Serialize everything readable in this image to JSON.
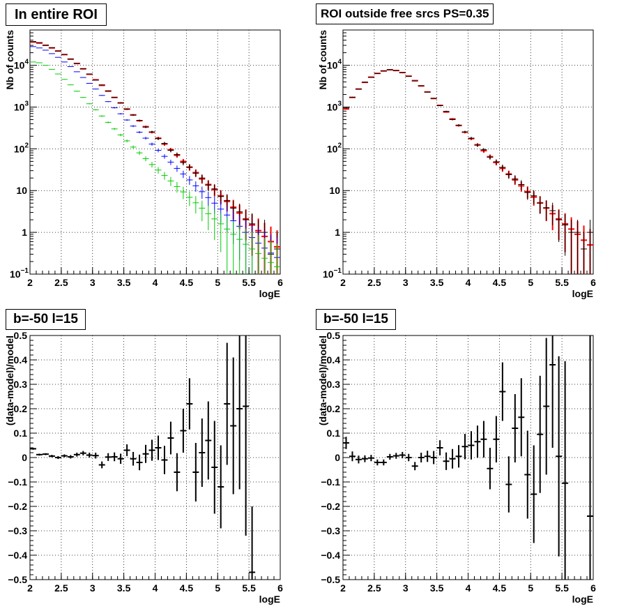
{
  "chart_data": [
    {
      "type": "scatter",
      "title": "In entire ROI",
      "xlabel": "logE",
      "ylabel": "Nb of counts",
      "xlim": [
        2,
        6
      ],
      "ylim": [
        0.1,
        70000
      ],
      "yscale": "log",
      "grid": true,
      "xticks": [
        "2",
        "2.5",
        "3",
        "3.5",
        "4",
        "4.5",
        "5",
        "5.5",
        "6"
      ],
      "yticks": [
        {
          "value": 0.1,
          "label": "10",
          "sup": "−1"
        },
        {
          "value": 1,
          "label": "1",
          "sup": ""
        },
        {
          "value": 10,
          "label": "10",
          "sup": ""
        },
        {
          "value": 100,
          "label": "10",
          "sup": "2"
        },
        {
          "value": 1000,
          "label": "10",
          "sup": "3"
        },
        {
          "value": 10000,
          "label": "10",
          "sup": "4"
        }
      ],
      "series": [
        {
          "color": "#ff0000",
          "x": [
            2.05,
            2.15,
            2.25,
            2.35,
            2.45,
            2.55,
            2.65,
            2.75,
            2.85,
            2.95,
            3.05,
            3.15,
            3.25,
            3.35,
            3.45,
            3.55,
            3.65,
            3.75,
            3.85,
            3.95,
            4.05,
            4.15,
            4.25,
            4.35,
            4.45,
            4.55,
            4.65,
            4.75,
            4.85,
            4.95,
            5.05,
            5.15,
            5.25,
            5.35,
            5.45,
            5.55,
            5.65,
            5.75,
            5.85,
            5.95
          ],
          "y": [
            36000,
            34000,
            30000,
            26000,
            22000,
            18000,
            14000,
            11000,
            8200,
            6100,
            4500,
            3300,
            2400,
            1700,
            1250,
            900,
            650,
            470,
            340,
            250,
            180,
            130,
            95,
            70,
            50,
            36,
            27,
            19,
            14,
            10.5,
            7.5,
            5.5,
            4,
            2.9,
            2.1,
            1.5,
            1.1,
            0.8,
            0.6,
            0.45
          ]
        },
        {
          "color": "#000000",
          "x": [
            2.05,
            2.15,
            2.25,
            2.35,
            2.45,
            2.55,
            2.65,
            2.75,
            2.85,
            2.95,
            3.05,
            3.15,
            3.25,
            3.35,
            3.45,
            3.55,
            3.65,
            3.75,
            3.85,
            3.95,
            4.05,
            4.15,
            4.25,
            4.35,
            4.45,
            4.55,
            4.65,
            4.75,
            4.85,
            4.95,
            5.05,
            5.15,
            5.25,
            5.35,
            5.45,
            5.55,
            5.65,
            5.75,
            5.85,
            5.95
          ],
          "y": [
            37000,
            35000,
            30500,
            26500,
            22000,
            18200,
            14200,
            11200,
            8300,
            6200,
            4400,
            3400,
            2450,
            1700,
            1270,
            880,
            640,
            480,
            330,
            255,
            175,
            135,
            92,
            73,
            47,
            37,
            26,
            20,
            13.5,
            11,
            7.2,
            5.8,
            3.8,
            3.1,
            2.0,
            1.6,
            1.0,
            1.0,
            0.3,
            0.4
          ]
        },
        {
          "color": "#0000ff",
          "x": [
            2.05,
            2.15,
            2.25,
            2.35,
            2.45,
            2.55,
            2.65,
            2.75,
            2.85,
            2.95,
            3.05,
            3.15,
            3.25,
            3.35,
            3.45,
            3.55,
            3.65,
            3.75,
            3.85,
            3.95,
            4.05,
            4.15,
            4.25,
            4.35,
            4.45,
            4.55,
            4.65,
            4.75,
            4.85,
            4.95,
            5.05,
            5.15,
            5.25,
            5.35,
            5.45,
            5.55,
            5.65,
            5.75,
            5.85,
            5.95
          ],
          "y": [
            28000,
            26000,
            23000,
            19000,
            15500,
            12000,
            9300,
            7000,
            5100,
            3700,
            2700,
            1900,
            1350,
            960,
            690,
            490,
            350,
            250,
            180,
            130,
            92,
            66,
            48,
            34,
            25,
            18,
            13,
            9.4,
            6.8,
            5,
            3.6,
            2.6,
            1.9,
            1.4,
            1.0,
            0.75,
            0.55,
            0.42,
            0.32,
            0.25
          ]
        },
        {
          "color": "#00cc00",
          "x": [
            2.05,
            2.15,
            2.25,
            2.35,
            2.45,
            2.55,
            2.65,
            2.75,
            2.85,
            2.95,
            3.05,
            3.15,
            3.25,
            3.35,
            3.45,
            3.55,
            3.65,
            3.75,
            3.85,
            3.95,
            4.05,
            4.15,
            4.25,
            4.35,
            4.45,
            4.55,
            4.65,
            4.75,
            4.85,
            4.95,
            5.05,
            5.15,
            5.25,
            5.35,
            5.45,
            5.55,
            5.65,
            5.75,
            5.85,
            5.95
          ],
          "y": [
            12000,
            11500,
            10000,
            8000,
            6200,
            4600,
            3400,
            2400,
            1700,
            1200,
            860,
            610,
            430,
            300,
            215,
            155,
            110,
            80,
            58,
            42,
            31,
            23,
            17,
            12.5,
            9.3,
            6.9,
            5.1,
            3.8,
            2.8,
            2.1,
            1.6,
            1.2,
            0.9,
            0.68,
            0.52,
            0.4,
            0.31,
            0.24,
            0.19,
            0.15
          ]
        }
      ]
    },
    {
      "type": "scatter",
      "title": "ROI outside free srcs PS=0.35",
      "xlabel": "logE",
      "ylabel": "Nb of counts",
      "xlim": [
        2,
        6
      ],
      "ylim": [
        0.1,
        70000
      ],
      "yscale": "log",
      "grid": true,
      "xticks": [
        "2",
        "2.5",
        "3",
        "3.5",
        "4",
        "4.5",
        "5",
        "5.5",
        "6"
      ],
      "yticks": [
        {
          "value": 0.1,
          "label": "10",
          "sup": "−1"
        },
        {
          "value": 1,
          "label": "1",
          "sup": ""
        },
        {
          "value": 10,
          "label": "10",
          "sup": ""
        },
        {
          "value": 100,
          "label": "10",
          "sup": "2"
        },
        {
          "value": 1000,
          "label": "10",
          "sup": "3"
        },
        {
          "value": 10000,
          "label": "10",
          "sup": "4"
        }
      ],
      "series": [
        {
          "color": "#ff0000",
          "x": [
            2.05,
            2.15,
            2.25,
            2.35,
            2.45,
            2.55,
            2.65,
            2.75,
            2.85,
            2.95,
            3.05,
            3.15,
            3.25,
            3.35,
            3.45,
            3.55,
            3.65,
            3.75,
            3.85,
            3.95,
            4.05,
            4.15,
            4.25,
            4.35,
            4.45,
            4.55,
            4.65,
            4.75,
            4.85,
            4.95,
            5.05,
            5.15,
            5.25,
            5.35,
            5.45,
            5.55,
            5.65,
            5.75,
            5.85,
            5.95
          ],
          "y": [
            900,
            1700,
            2700,
            3900,
            5200,
            6400,
            7300,
            7800,
            7500,
            6700,
            5500,
            4300,
            3200,
            2300,
            1600,
            1100,
            760,
            520,
            360,
            250,
            175,
            125,
            90,
            65,
            47,
            34,
            25,
            18,
            13,
            9.5,
            7,
            5.1,
            3.8,
            2.8,
            2.1,
            1.6,
            1.2,
            0.9,
            0.65,
            0.5
          ]
        },
        {
          "color": "#000000",
          "x": [
            2.05,
            2.15,
            2.25,
            2.35,
            2.45,
            2.55,
            2.65,
            2.75,
            2.85,
            2.95,
            3.05,
            3.15,
            3.25,
            3.35,
            3.45,
            3.55,
            3.65,
            3.75,
            3.85,
            3.95,
            4.05,
            4.15,
            4.25,
            4.35,
            4.45,
            4.55,
            4.65,
            4.75,
            4.85,
            4.95,
            5.05,
            5.15,
            5.25,
            5.35,
            5.45,
            5.55,
            5.65,
            5.75,
            5.85,
            5.95
          ],
          "y": [
            950,
            1720,
            2680,
            3950,
            5150,
            6350,
            7350,
            7850,
            7450,
            6650,
            5450,
            4200,
            3250,
            2280,
            1620,
            1080,
            790,
            500,
            370,
            255,
            180,
            122,
            95,
            63,
            49,
            36,
            24,
            19,
            14,
            9,
            7.5,
            5,
            3.9,
            3.3,
            2,
            1.5,
            1,
            1,
            0.4,
            1
          ]
        }
      ]
    },
    {
      "type": "scatter",
      "title": "b=-50 l=15",
      "xlabel": "logE",
      "ylabel": "(data-model)/model",
      "xlim": [
        2,
        6
      ],
      "ylim": [
        -0.5,
        0.5
      ],
      "grid": true,
      "xticks": [
        "2",
        "2.5",
        "3",
        "3.5",
        "4",
        "4.5",
        "5",
        "5.5",
        "6"
      ],
      "yticks": [
        {
          "value": -0.5,
          "label": "−0.5"
        },
        {
          "value": -0.4,
          "label": "−0.4"
        },
        {
          "value": -0.3,
          "label": "−0.3"
        },
        {
          "value": -0.2,
          "label": "−0.2"
        },
        {
          "value": -0.1,
          "label": "−0.1"
        },
        {
          "value": 0,
          "label": "0"
        },
        {
          "value": 0.1,
          "label": "0.1"
        },
        {
          "value": 0.2,
          "label": "0.2"
        },
        {
          "value": 0.3,
          "label": "0.3"
        },
        {
          "value": 0.4,
          "label": "0.4"
        },
        {
          "value": 0.5,
          "label": "0.5"
        }
      ],
      "points": [
        {
          "x": 2.05,
          "y": 0.036,
          "e": 0.004
        },
        {
          "x": 2.15,
          "y": 0.012,
          "e": 0.004
        },
        {
          "x": 2.25,
          "y": 0.014,
          "e": 0.004
        },
        {
          "x": 2.35,
          "y": 0.006,
          "e": 0.005
        },
        {
          "x": 2.45,
          "y": 0.0,
          "e": 0.006
        },
        {
          "x": 2.55,
          "y": 0.007,
          "e": 0.006
        },
        {
          "x": 2.65,
          "y": 0.003,
          "e": 0.007
        },
        {
          "x": 2.75,
          "y": 0.012,
          "e": 0.008
        },
        {
          "x": 2.85,
          "y": 0.018,
          "e": 0.009
        },
        {
          "x": 2.95,
          "y": 0.01,
          "e": 0.01
        },
        {
          "x": 3.05,
          "y": 0.008,
          "e": 0.012
        },
        {
          "x": 3.15,
          "y": -0.03,
          "e": 0.014
        },
        {
          "x": 3.25,
          "y": 0.002,
          "e": 0.016
        },
        {
          "x": 3.35,
          "y": 0.003,
          "e": 0.018
        },
        {
          "x": 3.45,
          "y": -0.005,
          "e": 0.021
        },
        {
          "x": 3.55,
          "y": 0.03,
          "e": 0.024
        },
        {
          "x": 3.65,
          "y": -0.005,
          "e": 0.028
        },
        {
          "x": 3.75,
          "y": -0.02,
          "e": 0.032
        },
        {
          "x": 3.85,
          "y": 0.015,
          "e": 0.037
        },
        {
          "x": 3.95,
          "y": 0.03,
          "e": 0.043
        },
        {
          "x": 4.05,
          "y": 0.04,
          "e": 0.05
        },
        {
          "x": 4.15,
          "y": -0.01,
          "e": 0.058
        },
        {
          "x": 4.25,
          "y": 0.08,
          "e": 0.067
        },
        {
          "x": 4.35,
          "y": -0.06,
          "e": 0.078
        },
        {
          "x": 4.45,
          "y": 0.11,
          "e": 0.09
        },
        {
          "x": 4.55,
          "y": 0.22,
          "e": 0.105
        },
        {
          "x": 4.65,
          "y": -0.06,
          "e": 0.12
        },
        {
          "x": 4.75,
          "y": 0.02,
          "e": 0.14
        },
        {
          "x": 4.85,
          "y": 0.07,
          "e": 0.16
        },
        {
          "x": 4.95,
          "y": -0.04,
          "e": 0.19
        },
        {
          "x": 5.05,
          "y": -0.12,
          "e": 0.17
        },
        {
          "x": 5.15,
          "y": 0.22,
          "e": 0.25
        },
        {
          "x": 5.25,
          "y": 0.13,
          "e": 0.28
        },
        {
          "x": 5.35,
          "y": 0.2,
          "e": 0.33
        },
        {
          "x": 5.45,
          "y": 0.21,
          "e": 0.53
        },
        {
          "x": 5.55,
          "y": -0.47,
          "e": 0.27
        }
      ]
    },
    {
      "type": "scatter",
      "title": "b=-50 l=15",
      "xlabel": "logE",
      "ylabel": "(data-model)/model",
      "xlim": [
        2,
        6
      ],
      "ylim": [
        -0.5,
        0.5
      ],
      "grid": true,
      "xticks": [
        "2",
        "2.5",
        "3",
        "3.5",
        "4",
        "4.5",
        "5",
        "5.5",
        "6"
      ],
      "yticks": [
        {
          "value": -0.5,
          "label": "−0.5"
        },
        {
          "value": -0.4,
          "label": "−0.4"
        },
        {
          "value": -0.3,
          "label": "−0.3"
        },
        {
          "value": -0.2,
          "label": "−0.2"
        },
        {
          "value": -0.1,
          "label": "−0.1"
        },
        {
          "value": 0,
          "label": "0"
        },
        {
          "value": 0.1,
          "label": "0.1"
        },
        {
          "value": 0.2,
          "label": "0.2"
        },
        {
          "value": 0.3,
          "label": "0.3"
        },
        {
          "value": 0.4,
          "label": "0.4"
        },
        {
          "value": 0.5,
          "label": "0.5"
        }
      ],
      "points": [
        {
          "x": 2.05,
          "y": 0.06,
          "e": 0.025
        },
        {
          "x": 2.15,
          "y": 0.005,
          "e": 0.02
        },
        {
          "x": 2.25,
          "y": -0.008,
          "e": 0.016
        },
        {
          "x": 2.35,
          "y": -0.005,
          "e": 0.014
        },
        {
          "x": 2.45,
          "y": -0.002,
          "e": 0.013
        },
        {
          "x": 2.55,
          "y": -0.02,
          "e": 0.012
        },
        {
          "x": 2.65,
          "y": -0.02,
          "e": 0.012
        },
        {
          "x": 2.75,
          "y": 0.003,
          "e": 0.012
        },
        {
          "x": 2.85,
          "y": 0.007,
          "e": 0.012
        },
        {
          "x": 2.95,
          "y": 0.01,
          "e": 0.013
        },
        {
          "x": 3.05,
          "y": 0.0,
          "e": 0.015
        },
        {
          "x": 3.15,
          "y": -0.035,
          "e": 0.017
        },
        {
          "x": 3.25,
          "y": 0.0,
          "e": 0.02
        },
        {
          "x": 3.35,
          "y": 0.005,
          "e": 0.023
        },
        {
          "x": 3.45,
          "y": 0.0,
          "e": 0.027
        },
        {
          "x": 3.55,
          "y": 0.04,
          "e": 0.031
        },
        {
          "x": 3.65,
          "y": -0.015,
          "e": 0.036
        },
        {
          "x": 3.75,
          "y": -0.005,
          "e": 0.04
        },
        {
          "x": 3.85,
          "y": 0.005,
          "e": 0.046
        },
        {
          "x": 3.95,
          "y": 0.045,
          "e": 0.052
        },
        {
          "x": 4.05,
          "y": 0.05,
          "e": 0.058
        },
        {
          "x": 4.15,
          "y": 0.065,
          "e": 0.066
        },
        {
          "x": 4.25,
          "y": 0.075,
          "e": 0.075
        },
        {
          "x": 4.35,
          "y": -0.045,
          "e": 0.085
        },
        {
          "x": 4.45,
          "y": 0.075,
          "e": 0.095
        },
        {
          "x": 4.55,
          "y": 0.27,
          "e": 0.12
        },
        {
          "x": 4.65,
          "y": -0.11,
          "e": 0.115
        },
        {
          "x": 4.75,
          "y": 0.12,
          "e": 0.14
        },
        {
          "x": 4.85,
          "y": 0.165,
          "e": 0.16
        },
        {
          "x": 4.95,
          "y": -0.07,
          "e": 0.18
        },
        {
          "x": 5.05,
          "y": -0.15,
          "e": 0.2
        },
        {
          "x": 5.15,
          "y": 0.095,
          "e": 0.24
        },
        {
          "x": 5.25,
          "y": 0.21,
          "e": 0.28
        },
        {
          "x": 5.35,
          "y": 0.38,
          "e": 0.34
        },
        {
          "x": 5.45,
          "y": 0.005,
          "e": 0.41
        },
        {
          "x": 5.55,
          "y": -0.105,
          "e": 0.5
        },
        {
          "x": 5.95,
          "y": -0.24,
          "e": 0.9
        }
      ]
    }
  ]
}
